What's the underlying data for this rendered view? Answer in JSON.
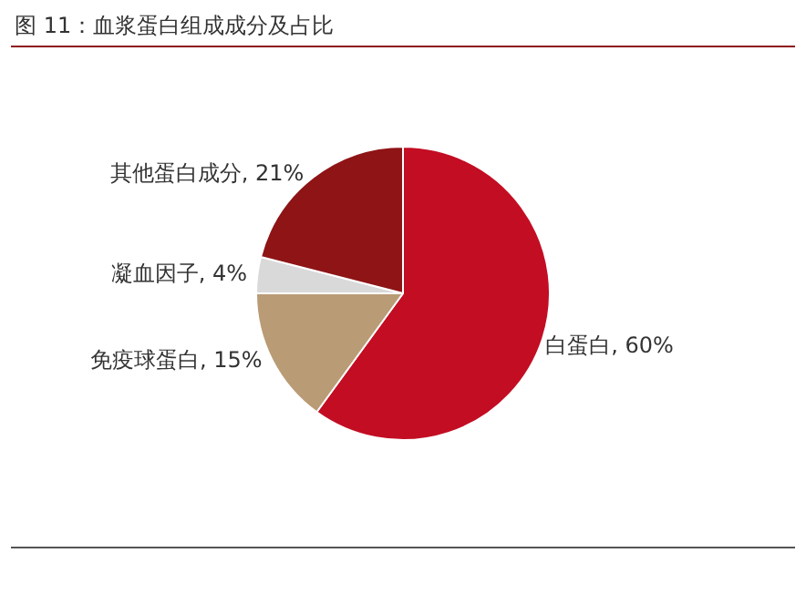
{
  "chart_data": {
    "type": "pie",
    "title": "图 11：血浆蛋白组成成分及占比",
    "categories": [
      "白蛋白",
      "免疫球蛋白",
      "凝血因子",
      "其他蛋白成分"
    ],
    "values": [
      60,
      15,
      4,
      21
    ],
    "colors": [
      "#c30d23",
      "#b99b75",
      "#d9d9d9",
      "#8e1416"
    ],
    "value_labels": [
      "60%",
      "15%",
      "4%",
      "21%"
    ],
    "legend": false
  }
}
